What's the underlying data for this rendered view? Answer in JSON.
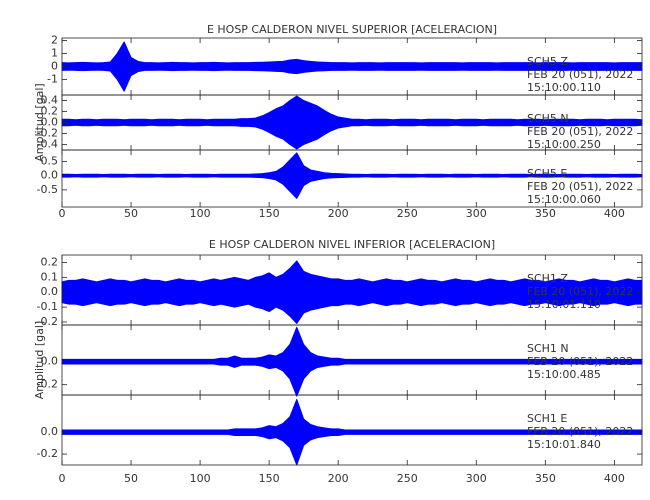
{
  "chart_data": [
    {
      "type": "waveform",
      "title": "E HOSP CALDERON NIVEL SUPERIOR [ACELERACION]",
      "ylabel": "Amplitud [gal]",
      "color": "#0000ff",
      "xlim": [
        0,
        420
      ],
      "xticks": [
        0,
        50,
        100,
        150,
        200,
        250,
        300,
        350,
        400
      ],
      "x": [
        0,
        5,
        10,
        15,
        20,
        25,
        30,
        35,
        40,
        45,
        50,
        55,
        60,
        65,
        70,
        75,
        80,
        85,
        90,
        95,
        100,
        105,
        110,
        115,
        120,
        125,
        130,
        135,
        140,
        145,
        150,
        155,
        160,
        165,
        170,
        175,
        180,
        185,
        190,
        195,
        200,
        205,
        210,
        215,
        220,
        225,
        230,
        235,
        240,
        245,
        250,
        255,
        260,
        265,
        270,
        275,
        280,
        285,
        290,
        295,
        300,
        305,
        310,
        315,
        320,
        325,
        330,
        335,
        340,
        345,
        350,
        355,
        360,
        365,
        370,
        375,
        380,
        385,
        390,
        395,
        400,
        405,
        410,
        415,
        420
      ],
      "panels": [
        {
          "labels": [
            "SCH5 Z",
            "FEB 20 (051), 2022",
            "15:10:00.110"
          ],
          "ylim": [
            -2.2,
            2.2
          ],
          "yticks": [
            2,
            1,
            0,
            -1
          ],
          "values": [
            0.3,
            0.28,
            0.3,
            0.32,
            0.3,
            0.28,
            0.3,
            0.35,
            1.0,
            1.9,
            0.7,
            0.4,
            0.3,
            0.3,
            0.28,
            0.3,
            0.32,
            0.3,
            0.3,
            0.28,
            0.3,
            0.3,
            0.32,
            0.3,
            0.28,
            0.3,
            0.3,
            0.3,
            0.32,
            0.33,
            0.35,
            0.38,
            0.4,
            0.5,
            0.55,
            0.45,
            0.4,
            0.35,
            0.33,
            0.3,
            0.3,
            0.3,
            0.28,
            0.3,
            0.3,
            0.3,
            0.28,
            0.3,
            0.3,
            0.3,
            0.3,
            0.3,
            0.28,
            0.3,
            0.3,
            0.3,
            0.3,
            0.3,
            0.28,
            0.3,
            0.3,
            0.3,
            0.3,
            0.28,
            0.3,
            0.3,
            0.3,
            0.3,
            0.3,
            0.28,
            0.3,
            0.3,
            0.3,
            0.3,
            0.28,
            0.3,
            0.3,
            0.3,
            0.3,
            0.3,
            0.28,
            0.3,
            0.3,
            0.3,
            0.3
          ]
        },
        {
          "labels": [
            "SCH5 N",
            "FEB 20 (051), 2022",
            "15:10:00.250"
          ],
          "ylim": [
            -0.5,
            0.5
          ],
          "yticks": [
            0.4,
            0.2,
            {
              "value": 0,
              "label": "0.0"
            },
            -0.2,
            -0.4
          ],
          "values": [
            0.06,
            0.06,
            0.05,
            0.06,
            0.06,
            0.05,
            0.06,
            0.06,
            0.06,
            0.05,
            0.06,
            0.06,
            0.06,
            0.05,
            0.06,
            0.06,
            0.06,
            0.05,
            0.06,
            0.06,
            0.06,
            0.05,
            0.06,
            0.06,
            0.06,
            0.06,
            0.07,
            0.07,
            0.08,
            0.12,
            0.18,
            0.25,
            0.3,
            0.4,
            0.48,
            0.4,
            0.35,
            0.3,
            0.22,
            0.15,
            0.1,
            0.08,
            0.06,
            0.06,
            0.05,
            0.06,
            0.06,
            0.06,
            0.05,
            0.06,
            0.06,
            0.06,
            0.05,
            0.06,
            0.06,
            0.06,
            0.06,
            0.05,
            0.06,
            0.06,
            0.06,
            0.05,
            0.06,
            0.06,
            0.06,
            0.06,
            0.05,
            0.06,
            0.06,
            0.06,
            0.05,
            0.06,
            0.06,
            0.06,
            0.06,
            0.05,
            0.06,
            0.06,
            0.06,
            0.05,
            0.06,
            0.06,
            0.06,
            0.06,
            0.05
          ]
        },
        {
          "labels": [
            "SCH5 E",
            "FEB 20 (051), 2022",
            "15:10:00.060"
          ],
          "ylim": [
            -1.1,
            0.9
          ],
          "yticks": [
            0.5,
            {
              "value": 0,
              "label": "0.0"
            },
            -0.5
          ],
          "values": [
            0.05,
            0.05,
            0.04,
            0.05,
            0.05,
            0.05,
            0.04,
            0.05,
            0.05,
            0.05,
            0.04,
            0.05,
            0.05,
            0.05,
            0.04,
            0.05,
            0.05,
            0.05,
            0.04,
            0.05,
            0.05,
            0.05,
            0.04,
            0.05,
            0.05,
            0.05,
            0.05,
            0.05,
            0.06,
            0.07,
            0.1,
            0.15,
            0.3,
            0.55,
            0.8,
            0.35,
            0.2,
            0.15,
            0.1,
            0.08,
            0.07,
            0.06,
            0.05,
            0.05,
            0.04,
            0.05,
            0.05,
            0.05,
            0.04,
            0.05,
            0.05,
            0.05,
            0.04,
            0.05,
            0.05,
            0.05,
            0.04,
            0.05,
            0.05,
            0.05,
            0.04,
            0.05,
            0.05,
            0.05,
            0.04,
            0.05,
            0.05,
            0.05,
            0.04,
            0.05,
            0.05,
            0.05,
            0.04,
            0.05,
            0.05,
            0.05,
            0.04,
            0.05,
            0.05,
            0.05,
            0.04,
            0.05,
            0.05,
            0.05,
            0.04
          ]
        }
      ]
    },
    {
      "type": "waveform",
      "title": "E HOSP CALDERON NIVEL INFERIOR [ACELERACION]",
      "ylabel": "Amplitud [gal]",
      "color": "#0000ff",
      "xlim": [
        0,
        420
      ],
      "xticks": [
        0,
        50,
        100,
        150,
        200,
        250,
        300,
        350,
        400
      ],
      "x": [
        0,
        5,
        10,
        15,
        20,
        25,
        30,
        35,
        40,
        45,
        50,
        55,
        60,
        65,
        70,
        75,
        80,
        85,
        90,
        95,
        100,
        105,
        110,
        115,
        120,
        125,
        130,
        135,
        140,
        145,
        150,
        155,
        160,
        165,
        170,
        175,
        180,
        185,
        190,
        195,
        200,
        205,
        210,
        215,
        220,
        225,
        230,
        235,
        240,
        245,
        250,
        255,
        260,
        265,
        270,
        275,
        280,
        285,
        290,
        295,
        300,
        305,
        310,
        315,
        320,
        325,
        330,
        335,
        340,
        345,
        350,
        355,
        360,
        365,
        370,
        375,
        380,
        385,
        390,
        395,
        400,
        405,
        410,
        415,
        420
      ],
      "panels": [
        {
          "labels": [
            "SCH1 Z",
            "FEB 20 (051), 2022",
            "15:10:01.110"
          ],
          "ylim": [
            -0.22,
            0.25
          ],
          "yticks": [
            0.2,
            0.1,
            {
              "value": 0,
              "label": "0.0"
            },
            -0.1,
            -0.2
          ],
          "values": [
            0.07,
            0.08,
            0.08,
            0.09,
            0.08,
            0.07,
            0.08,
            0.09,
            0.08,
            0.08,
            0.07,
            0.08,
            0.09,
            0.08,
            0.08,
            0.07,
            0.08,
            0.09,
            0.08,
            0.08,
            0.07,
            0.08,
            0.09,
            0.08,
            0.09,
            0.1,
            0.09,
            0.08,
            0.1,
            0.11,
            0.13,
            0.1,
            0.12,
            0.16,
            0.21,
            0.14,
            0.12,
            0.11,
            0.1,
            0.09,
            0.09,
            0.08,
            0.08,
            0.09,
            0.08,
            0.07,
            0.08,
            0.09,
            0.08,
            0.08,
            0.07,
            0.08,
            0.09,
            0.08,
            0.08,
            0.07,
            0.08,
            0.09,
            0.08,
            0.08,
            0.07,
            0.08,
            0.09,
            0.08,
            0.08,
            0.07,
            0.08,
            0.09,
            0.08,
            0.08,
            0.07,
            0.08,
            0.09,
            0.08,
            0.08,
            0.07,
            0.08,
            0.09,
            0.08,
            0.08,
            0.07,
            0.08,
            0.09,
            0.08,
            0.08
          ]
        },
        {
          "labels": [
            "SCH1 N",
            "FEB 20 (051), 2022",
            "15:10:00.485"
          ],
          "ylim": [
            -0.29,
            0.32
          ],
          "yticks": [
            {
              "value": 0,
              "label": "0.0"
            },
            -0.2
          ],
          "values": [
            0.02,
            0.02,
            0.02,
            0.02,
            0.02,
            0.02,
            0.02,
            0.02,
            0.02,
            0.02,
            0.02,
            0.02,
            0.02,
            0.02,
            0.02,
            0.02,
            0.02,
            0.02,
            0.02,
            0.02,
            0.02,
            0.02,
            0.02,
            0.03,
            0.03,
            0.05,
            0.03,
            0.03,
            0.03,
            0.04,
            0.06,
            0.05,
            0.08,
            0.15,
            0.3,
            0.15,
            0.08,
            0.05,
            0.04,
            0.03,
            0.03,
            0.02,
            0.02,
            0.02,
            0.02,
            0.02,
            0.02,
            0.02,
            0.02,
            0.02,
            0.02,
            0.02,
            0.02,
            0.02,
            0.02,
            0.02,
            0.02,
            0.02,
            0.02,
            0.02,
            0.02,
            0.02,
            0.02,
            0.02,
            0.02,
            0.02,
            0.02,
            0.02,
            0.02,
            0.02,
            0.02,
            0.02,
            0.02,
            0.02,
            0.02,
            0.02,
            0.02,
            0.02,
            0.02,
            0.02,
            0.02,
            0.02,
            0.02,
            0.02,
            0.02
          ]
        },
        {
          "labels": [
            "SCH1 E",
            "FEB 20 (051), 2022",
            "15:10:01.840"
          ],
          "ylim": [
            -0.3,
            0.34
          ],
          "yticks": [
            {
              "value": 0,
              "label": "0.0"
            },
            -0.2
          ],
          "values": [
            0.02,
            0.02,
            0.02,
            0.02,
            0.02,
            0.02,
            0.02,
            0.02,
            0.02,
            0.02,
            0.02,
            0.02,
            0.02,
            0.02,
            0.02,
            0.02,
            0.02,
            0.02,
            0.02,
            0.02,
            0.02,
            0.02,
            0.02,
            0.02,
            0.02,
            0.03,
            0.03,
            0.03,
            0.03,
            0.04,
            0.06,
            0.05,
            0.08,
            0.14,
            0.3,
            0.12,
            0.07,
            0.05,
            0.04,
            0.03,
            0.03,
            0.02,
            0.02,
            0.02,
            0.02,
            0.02,
            0.02,
            0.02,
            0.02,
            0.02,
            0.02,
            0.02,
            0.02,
            0.02,
            0.02,
            0.02,
            0.02,
            0.02,
            0.02,
            0.02,
            0.02,
            0.02,
            0.02,
            0.02,
            0.02,
            0.02,
            0.02,
            0.02,
            0.02,
            0.02,
            0.02,
            0.02,
            0.02,
            0.02,
            0.02,
            0.02,
            0.02,
            0.02,
            0.02,
            0.02,
            0.02,
            0.02,
            0.02,
            0.02,
            0.02
          ]
        }
      ]
    }
  ]
}
